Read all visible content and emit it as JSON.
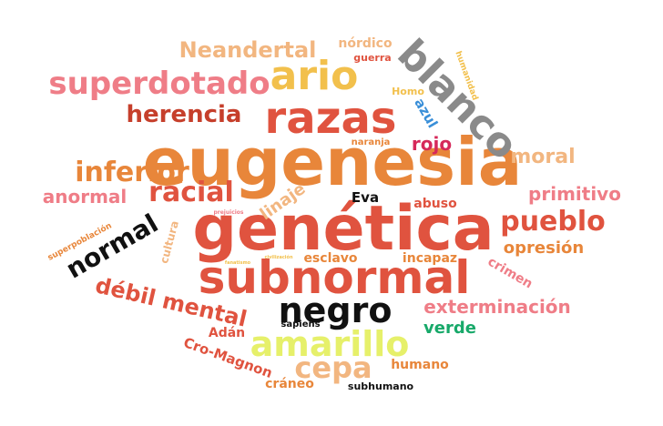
{
  "colors": {
    "orange": "#e8863a",
    "red": "#e0533f",
    "pink": "#ef7d87",
    "peach": "#f2b680",
    "yellow": "#f2c04c",
    "dark_red": "#c63f2b",
    "crimson": "#d6295a",
    "gray": "#8a8a8a",
    "black": "#111111",
    "blue": "#3a8fd8",
    "green": "#18a96a",
    "lime": "#e6f06a"
  },
  "words": [
    {
      "text": "eugenesia",
      "color": "orange"
    },
    {
      "text": "genética",
      "color": "red"
    },
    {
      "text": "razas",
      "color": "red"
    },
    {
      "text": "ario",
      "color": "yellow"
    },
    {
      "text": "blanco",
      "color": "gray"
    },
    {
      "text": "subnormal",
      "color": "red"
    },
    {
      "text": "negro",
      "color": "black"
    },
    {
      "text": "superdotado",
      "color": "pink"
    },
    {
      "text": "amarillo",
      "color": "lime"
    },
    {
      "text": "racial",
      "color": "red"
    },
    {
      "text": "inferior",
      "color": "orange"
    },
    {
      "text": "Neandertal",
      "color": "peach"
    },
    {
      "text": "herencia",
      "color": "dark_red"
    },
    {
      "text": "pueblo",
      "color": "red"
    },
    {
      "text": "normal",
      "color": "black"
    },
    {
      "text": "débil mental",
      "color": "red"
    },
    {
      "text": "cepa",
      "color": "peach"
    },
    {
      "text": "primitivo",
      "color": "pink"
    },
    {
      "text": "exterminación",
      "color": "pink"
    },
    {
      "text": "anormal",
      "color": "pink"
    },
    {
      "text": "moral",
      "color": "peach"
    },
    {
      "text": "opresión",
      "color": "orange"
    },
    {
      "text": "rojo",
      "color": "crimson"
    },
    {
      "text": "linaje",
      "color": "peach"
    },
    {
      "text": "verde",
      "color": "green"
    },
    {
      "text": "cultura",
      "color": "peach"
    },
    {
      "text": "crimen",
      "color": "pink"
    },
    {
      "text": "Cro-Magnon",
      "color": "red"
    },
    {
      "text": "Adán",
      "color": "red"
    },
    {
      "text": "humano",
      "color": "orange"
    },
    {
      "text": "cráneo",
      "color": "orange"
    },
    {
      "text": "esclavo",
      "color": "orange"
    },
    {
      "text": "incapaz",
      "color": "orange"
    },
    {
      "text": "nórdico",
      "color": "peach"
    },
    {
      "text": "abuso",
      "color": "red"
    },
    {
      "text": "Eva",
      "color": "black"
    },
    {
      "text": "guerra",
      "color": "red"
    },
    {
      "text": "azul",
      "color": "blue"
    },
    {
      "text": "Homo",
      "color": "yellow"
    },
    {
      "text": "humanidad",
      "color": "yellow"
    },
    {
      "text": "sapiens",
      "color": "black"
    },
    {
      "text": "subhumano",
      "color": "black"
    },
    {
      "text": "naranja",
      "color": "orange"
    },
    {
      "text": "superpoblación",
      "color": "orange"
    },
    {
      "text": "prejuicios",
      "color": "pink"
    },
    {
      "text": "civilización",
      "color": "yellow"
    },
    {
      "text": "fanatismo",
      "color": "yellow"
    }
  ]
}
